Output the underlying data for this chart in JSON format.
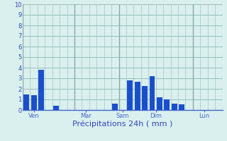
{
  "xlabel": "Précipitations 24h ( mm )",
  "bg_color": "#daf0ee",
  "bar_color": "#1a4fcc",
  "grid_color": "#99bbbb",
  "vline_color": "#88aaaa",
  "axis_color": "#4466cc",
  "text_color": "#3344bb",
  "ylim": [
    0,
    10
  ],
  "yticks": [
    0,
    1,
    2,
    3,
    4,
    5,
    6,
    7,
    8,
    9,
    10
  ],
  "bar_positions": [
    0,
    1,
    2,
    4,
    12,
    14,
    15,
    16,
    17,
    18,
    19,
    20,
    21
  ],
  "bar_heights": [
    1.5,
    1.4,
    3.8,
    0.4,
    0.6,
    2.8,
    2.7,
    2.3,
    3.2,
    1.2,
    1.0,
    0.6,
    0.55
  ],
  "day_tick_positions": [
    1,
    8,
    13,
    17.5,
    24
  ],
  "day_vline_positions": [
    -0.5,
    6.5,
    12.5,
    22.5
  ],
  "day_labels": [
    "Ven",
    "Mar",
    "Sam",
    "Dim",
    "Lun"
  ],
  "n_bars": 27,
  "xlabel_fontsize": 8,
  "tick_fontsize": 6,
  "bar_width": 0.75
}
